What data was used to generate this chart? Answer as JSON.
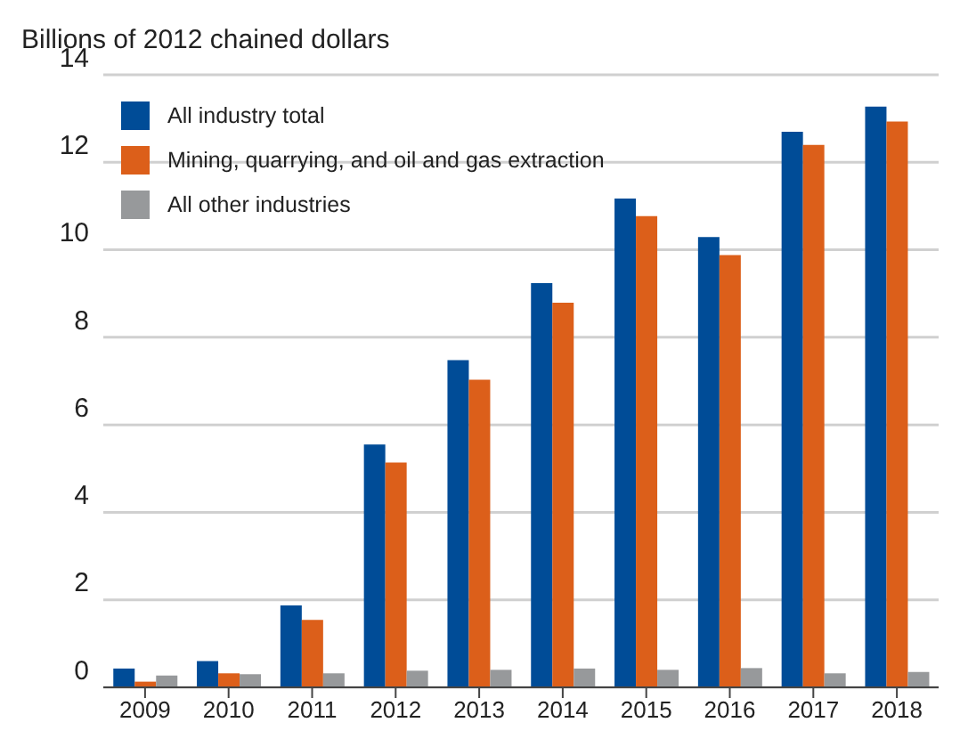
{
  "chart_data": {
    "type": "bar",
    "ylabel": "Billions of 2012 chained dollars",
    "categories": [
      "2009",
      "2010",
      "2011",
      "2012",
      "2013",
      "2014",
      "2015",
      "2016",
      "2017",
      "2018"
    ],
    "series": [
      {
        "name": "All industry total",
        "color": "#004c97",
        "values": [
          0.43,
          0.6,
          1.87,
          5.55,
          7.48,
          9.24,
          11.17,
          10.29,
          12.7,
          13.27
        ]
      },
      {
        "name": "Mining, quarrying, and oil and gas extraction",
        "color": "#dc5f1a",
        "values": [
          0.13,
          0.32,
          1.54,
          5.14,
          7.03,
          8.79,
          10.77,
          9.88,
          12.4,
          12.93
        ]
      },
      {
        "name": "All other industries",
        "color": "#97999b",
        "values": [
          0.27,
          0.3,
          0.32,
          0.38,
          0.4,
          0.43,
          0.4,
          0.44,
          0.32,
          0.35
        ]
      }
    ],
    "ylim": [
      0,
      14
    ],
    "yticks": [
      0,
      2,
      4,
      6,
      8,
      10,
      12,
      14
    ],
    "grid": "y",
    "legend": "top left"
  }
}
